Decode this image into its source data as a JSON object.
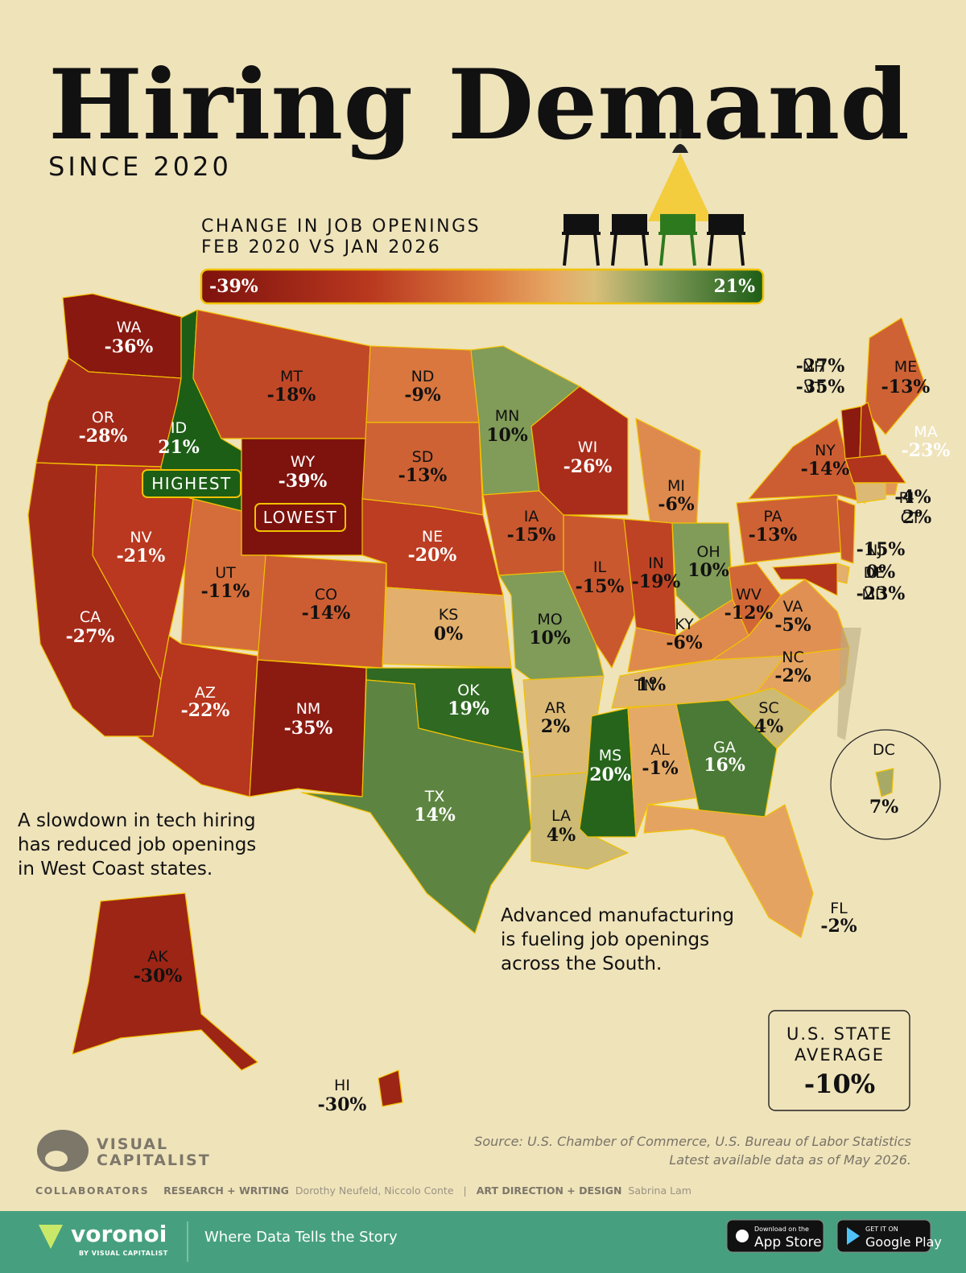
{
  "header": {
    "title": "Hiring Demand",
    "subtitle": "SINCE 2020"
  },
  "legend": {
    "title_lines": [
      "CHANGE IN JOB OPENINGS",
      "FEB 2020 VS JAN 2026"
    ],
    "min": -39,
    "min_label": "-39%",
    "max": 21,
    "max_label": "21%"
  },
  "map": {
    "highest_label": "HIGHEST",
    "lowest_label": "LOWEST",
    "states": [
      {
        "code": "WA",
        "value": -36,
        "value_label": "-36%"
      },
      {
        "code": "OR",
        "value": -28,
        "value_label": "-28%"
      },
      {
        "code": "CA",
        "value": -27,
        "value_label": "-27%"
      },
      {
        "code": "ID",
        "value": 21,
        "value_label": "21%"
      },
      {
        "code": "MT",
        "value": -18,
        "value_label": "-18%"
      },
      {
        "code": "WY",
        "value": -39,
        "value_label": "-39%"
      },
      {
        "code": "NV",
        "value": -21,
        "value_label": "-21%"
      },
      {
        "code": "UT",
        "value": -11,
        "value_label": "-11%"
      },
      {
        "code": "CO",
        "value": -14,
        "value_label": "-14%"
      },
      {
        "code": "AZ",
        "value": -22,
        "value_label": "-22%"
      },
      {
        "code": "NM",
        "value": -35,
        "value_label": "-35%"
      },
      {
        "code": "ND",
        "value": -9,
        "value_label": "-9%"
      },
      {
        "code": "SD",
        "value": -13,
        "value_label": "-13%"
      },
      {
        "code": "NE",
        "value": -20,
        "value_label": "-20%"
      },
      {
        "code": "KS",
        "value": 0,
        "value_label": "0%"
      },
      {
        "code": "OK",
        "value": 19,
        "value_label": "19%"
      },
      {
        "code": "TX",
        "value": 14,
        "value_label": "14%"
      },
      {
        "code": "MN",
        "value": 10,
        "value_label": "10%"
      },
      {
        "code": "IA",
        "value": -15,
        "value_label": "-15%"
      },
      {
        "code": "MO",
        "value": 10,
        "value_label": "10%"
      },
      {
        "code": "AR",
        "value": 2,
        "value_label": "2%"
      },
      {
        "code": "LA",
        "value": 4,
        "value_label": "4%"
      },
      {
        "code": "WI",
        "value": -26,
        "value_label": "-26%"
      },
      {
        "code": "IL",
        "value": -15,
        "value_label": "-15%"
      },
      {
        "code": "MS",
        "value": 20,
        "value_label": "20%"
      },
      {
        "code": "MI",
        "value": -6,
        "value_label": "-6%"
      },
      {
        "code": "IN",
        "value": -19,
        "value_label": "-19%"
      },
      {
        "code": "OH",
        "value": 10,
        "value_label": "10%"
      },
      {
        "code": "KY",
        "value": -6,
        "value_label": "-6%"
      },
      {
        "code": "TN",
        "value": 1,
        "value_label": "1%"
      },
      {
        "code": "AL",
        "value": -1,
        "value_label": "-1%"
      },
      {
        "code": "GA",
        "value": 16,
        "value_label": "16%"
      },
      {
        "code": "FL",
        "value": -2,
        "value_label": "-2%"
      },
      {
        "code": "SC",
        "value": 4,
        "value_label": "4%"
      },
      {
        "code": "NC",
        "value": -2,
        "value_label": "-2%"
      },
      {
        "code": "VA",
        "value": -5,
        "value_label": "-5%"
      },
      {
        "code": "WV",
        "value": -12,
        "value_label": "-12%"
      },
      {
        "code": "PA",
        "value": -13,
        "value_label": "-13%"
      },
      {
        "code": "NY",
        "value": -14,
        "value_label": "-14%"
      },
      {
        "code": "ME",
        "value": -13,
        "value_label": "-13%"
      },
      {
        "code": "VT",
        "value": -35,
        "value_label": "-35%"
      },
      {
        "code": "NH",
        "value": -27,
        "value_label": "-27%"
      },
      {
        "code": "MA",
        "value": -23,
        "value_label": "-23%"
      },
      {
        "code": "RI",
        "value": -4,
        "value_label": "-4%"
      },
      {
        "code": "CT",
        "value": 2,
        "value_label": "2%"
      },
      {
        "code": "NJ",
        "value": -15,
        "value_label": "-15%"
      },
      {
        "code": "DE",
        "value": 0,
        "value_label": "0%"
      },
      {
        "code": "MD",
        "value": -23,
        "value_label": "-23%"
      },
      {
        "code": "DC",
        "value": 7,
        "value_label": "7%"
      },
      {
        "code": "AK",
        "value": -30,
        "value_label": "-30%"
      },
      {
        "code": "HI",
        "value": -30,
        "value_label": "-30%"
      }
    ]
  },
  "annotations": [
    {
      "lines": [
        "A slowdown in tech hiring",
        "has reduced job openings",
        "in West Coast states."
      ]
    },
    {
      "lines": [
        "Advanced manufacturing",
        "is fueling job openings",
        "across the South."
      ]
    }
  ],
  "average": {
    "title_lines": [
      "U.S. STATE",
      "AVERAGE"
    ],
    "value_label": "-10%"
  },
  "source": {
    "lines": [
      "Source: U.S. Chamber of Commerce, U.S. Bureau of Labor Statistics",
      "Latest available data as of May 2026."
    ]
  },
  "credits": {
    "logo_lines": [
      "VISUAL",
      "CAPITALIST"
    ],
    "collaborators": "COLLABORATORS",
    "research_label": "RESEARCH + WRITING",
    "research": "Dorothy Neufeld, Niccolo Conte",
    "design_label": "ART DIRECTION + DESIGN",
    "design": "Sabrina Lam"
  },
  "footer": {
    "brand": "voronoi",
    "brand_sub": "BY VISUAL CAPITALIST",
    "tagline": "Where Data Tells the Story",
    "app_store": [
      "Download on the",
      "App Store"
    ],
    "google_play": [
      "GET IT ON",
      "Google Play"
    ]
  }
}
